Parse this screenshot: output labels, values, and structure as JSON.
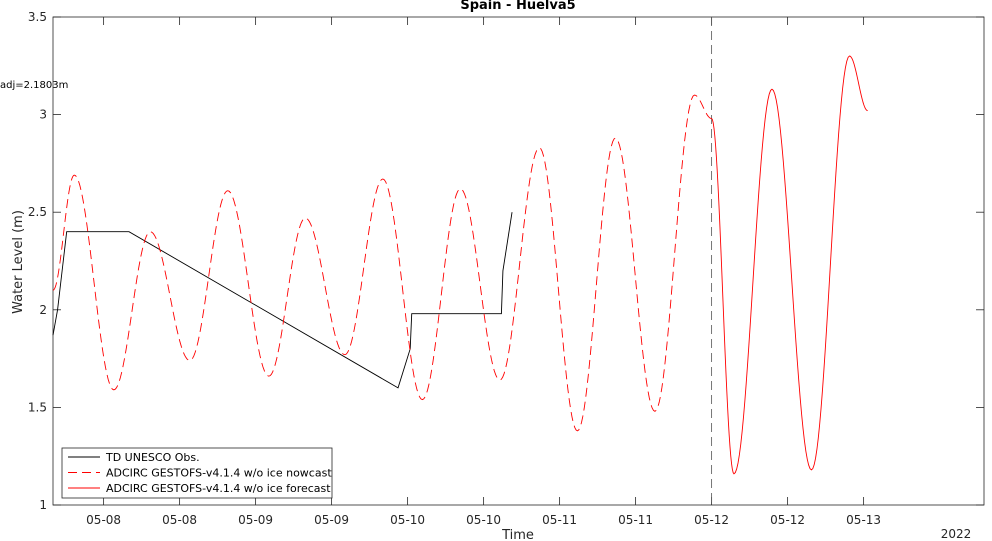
{
  "chart_data": {
    "type": "line",
    "title": "Spain - Huelva5",
    "xlabel": "Time",
    "ylabel": "Water Level (m)",
    "annotation": "adj=2.1803m",
    "ylim": [
      1,
      3.5
    ],
    "yticks": [
      1,
      1.5,
      2,
      2.5,
      3,
      3.5
    ],
    "xlim": [
      0,
      6.125
    ],
    "xticks": [
      {
        "x": 0.333,
        "label": "05-08"
      },
      {
        "x": 0.833,
        "label": "05-08"
      },
      {
        "x": 1.333,
        "label": "05-09"
      },
      {
        "x": 1.833,
        "label": "05-09"
      },
      {
        "x": 2.333,
        "label": "05-10"
      },
      {
        "x": 2.833,
        "label": "05-10"
      },
      {
        "x": 3.333,
        "label": "05-11"
      },
      {
        "x": 3.833,
        "label": "05-11"
      },
      {
        "x": 4.333,
        "label": "05-12"
      },
      {
        "x": 4.833,
        "label": "05-12"
      },
      {
        "x": 5.333,
        "label": "05-13"
      }
    ],
    "year_label": "2022",
    "nowcast_end_x": 4.333,
    "legend_position": "bottom-left",
    "series": [
      {
        "name": "TD UNESCO Obs.",
        "color": "#000000",
        "style": "solid",
        "points": [
          [
            0,
            1.87
          ],
          [
            0.03,
            2.0
          ],
          [
            0.06,
            2.2
          ],
          [
            0.09,
            2.4
          ],
          [
            0.5,
            2.4
          ],
          [
            2.27,
            1.6
          ],
          [
            2.35,
            1.8
          ],
          [
            2.36,
            1.98
          ],
          [
            2.95,
            1.98
          ],
          [
            2.96,
            2.2
          ],
          [
            3.02,
            2.5
          ]
        ]
      },
      {
        "name": "ADCIRC GESTOFS-v4.1.4 w/o ice nowcast",
        "color": "#ff0000",
        "style": "dashed",
        "peaks": [
          [
            0.0,
            2.1
          ],
          [
            0.14,
            2.69
          ],
          [
            0.4,
            1.59
          ],
          [
            0.64,
            2.4
          ],
          [
            0.9,
            1.74
          ],
          [
            1.15,
            2.61
          ],
          [
            1.42,
            1.66
          ],
          [
            1.66,
            2.47
          ],
          [
            1.92,
            1.77
          ],
          [
            2.17,
            2.67
          ],
          [
            2.43,
            1.54
          ],
          [
            2.68,
            2.62
          ],
          [
            2.94,
            1.64
          ],
          [
            3.2,
            2.83
          ],
          [
            3.45,
            1.38
          ],
          [
            3.7,
            2.88
          ],
          [
            3.96,
            1.48
          ],
          [
            4.22,
            3.1
          ],
          [
            4.333,
            2.98
          ]
        ]
      },
      {
        "name": "ADCIRC GESTOFS-v4.1.4 w/o ice forecast",
        "color": "#ff0000",
        "style": "solid",
        "peaks": [
          [
            4.333,
            2.98
          ],
          [
            4.48,
            1.16
          ],
          [
            4.73,
            3.13
          ],
          [
            4.99,
            1.18
          ],
          [
            5.24,
            3.3
          ],
          [
            5.36,
            3.02
          ]
        ]
      }
    ]
  }
}
